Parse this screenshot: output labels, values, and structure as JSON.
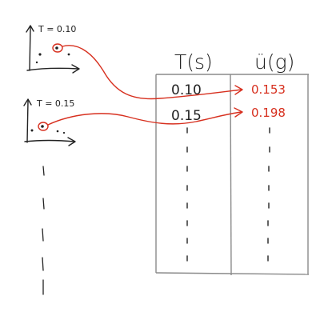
{
  "plots": [
    {
      "label": "T = 0.10"
    },
    {
      "label": "T = 0.15"
    }
  ],
  "table": {
    "headers": [
      "T(s)",
      "ü(g)"
    ],
    "rows": [
      {
        "T": "0.10",
        "u": "0.153"
      },
      {
        "T": "0.15",
        "u": "0.198"
      }
    ]
  },
  "colors": {
    "ink": "#222222",
    "accent": "#d7301f",
    "grid": "#8a8a8a"
  }
}
